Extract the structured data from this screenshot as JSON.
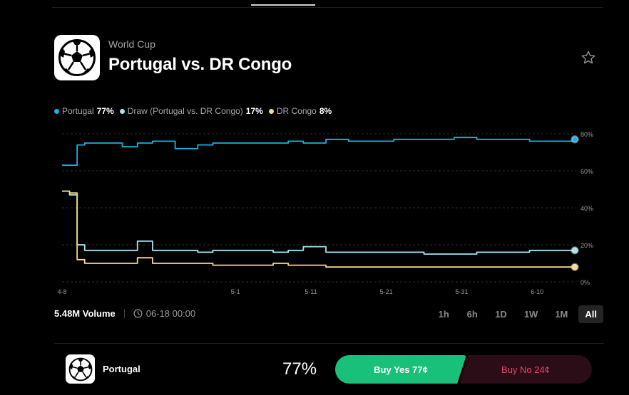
{
  "header": {
    "category": "World Cup",
    "title": "Portugal vs. DR Congo",
    "logo_icon": "soccer-ball-icon",
    "favorite_icon": "star-icon"
  },
  "legend": [
    {
      "label": "Portugal",
      "value": "77%",
      "color": "#1ab1e0"
    },
    {
      "label": "Draw (Portugal vs. DR Congo)",
      "value": "17%",
      "color": "#a6e4f5"
    },
    {
      "label": "DR Congo",
      "value": "8%",
      "color": "#f7d98c"
    }
  ],
  "chart_data": {
    "type": "line",
    "x_labels": [
      "4-8",
      "5-1",
      "5-11",
      "5-21",
      "5-31",
      "6-10"
    ],
    "x_range": [
      "4-8",
      "6-17"
    ],
    "y_ticks": [
      "80%",
      "60%",
      "40%",
      "20%",
      "0%"
    ],
    "ylim": [
      0,
      80
    ],
    "grid": true,
    "legend_position": "top-left",
    "series": [
      {
        "name": "Portugal",
        "color": "#1ab1e0",
        "x": [
          0,
          1,
          2,
          3,
          5,
          8,
          10,
          12,
          15,
          18,
          20,
          25,
          30,
          32,
          35,
          38,
          40,
          44,
          48,
          52,
          55,
          58,
          62,
          64,
          68
        ],
        "y": [
          63,
          63,
          74,
          75,
          75,
          73,
          75,
          76,
          72,
          74,
          75,
          75,
          76,
          75,
          77,
          76,
          76,
          77,
          77,
          78,
          77,
          77,
          76,
          76,
          77
        ]
      },
      {
        "name": "Draw (Portugal vs. DR Congo)",
        "color": "#a6e4f5",
        "x": [
          0,
          1,
          2,
          3,
          5,
          8,
          10,
          12,
          15,
          18,
          20,
          25,
          28,
          30,
          32,
          35,
          38,
          40,
          44,
          48,
          52,
          55,
          58,
          62,
          64,
          68
        ],
        "y": [
          49,
          47,
          20,
          17,
          17,
          17,
          22,
          17,
          17,
          16,
          17,
          17,
          16,
          17,
          19,
          16,
          16,
          16,
          16,
          15,
          15,
          16,
          16,
          17,
          17,
          17
        ],
        "end_value": 17
      },
      {
        "name": "DR Congo",
        "color": "#f7d98c",
        "x": [
          0,
          1,
          2,
          3,
          5,
          8,
          10,
          12,
          15,
          18,
          20,
          25,
          28,
          30,
          32,
          35,
          38,
          40,
          44,
          48,
          52,
          55,
          58,
          62,
          64,
          68
        ],
        "y": [
          49,
          48,
          12,
          10,
          10,
          10,
          13,
          10,
          10,
          10,
          9,
          9,
          10,
          9,
          9,
          8,
          8,
          8,
          8,
          8,
          8,
          8,
          8,
          8,
          8,
          8
        ],
        "end_value": 8
      }
    ]
  },
  "stats": {
    "volume": "5.48M Volume",
    "end_date": "06-18 00:00",
    "clock_icon": "clock-icon"
  },
  "time_ranges": [
    {
      "label": "1h",
      "active": false
    },
    {
      "label": "6h",
      "active": false
    },
    {
      "label": "1D",
      "active": false
    },
    {
      "label": "1W",
      "active": false
    },
    {
      "label": "1M",
      "active": false
    },
    {
      "label": "All",
      "active": true
    }
  ],
  "outcome": {
    "name": "Portugal",
    "percent": "77%",
    "buy_yes": "Buy Yes 77¢",
    "buy_no": "Buy No 24¢",
    "yes_color": "#19c07a",
    "no_color": "#e9476e"
  }
}
